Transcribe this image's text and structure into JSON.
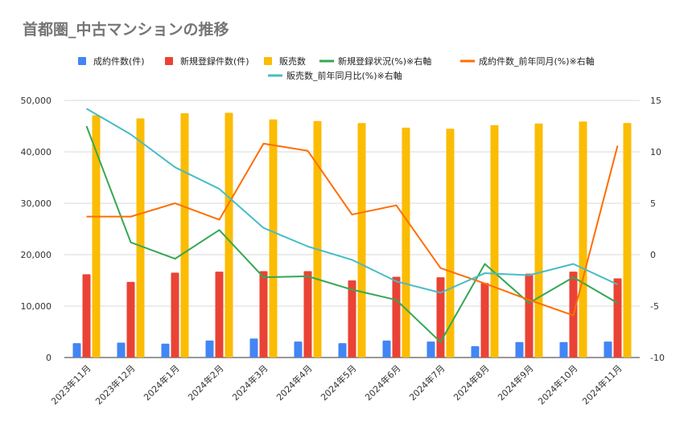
{
  "chart_data": {
    "type": "bar",
    "title": "首都圏_中古マンションの推移",
    "categories": [
      "2023年11月",
      "2023年12月",
      "2024年1月",
      "2024年2月",
      "2024年3月",
      "2024年4月",
      "2024年5月",
      "2024年6月",
      "2024年7月",
      "2024年8月",
      "2024年9月",
      "2024年10月",
      "2024年11月"
    ],
    "ylim": [
      0,
      50000
    ],
    "y_ticks": [
      "0",
      "10,000",
      "20,000",
      "30,000",
      "40,000",
      "50,000"
    ],
    "y2lim": [
      -10,
      15
    ],
    "y2_ticks": [
      "-10",
      "-5",
      "0",
      "5",
      "10",
      "15"
    ],
    "grid": true,
    "legend_position": "top",
    "bar_series": [
      {
        "name": "成約件数(件)",
        "color": "#4285f4",
        "values": [
          2800,
          2900,
          2700,
          3300,
          3700,
          3100,
          2800,
          3300,
          3100,
          2200,
          3000,
          3000,
          3100
        ]
      },
      {
        "name": "新規登録件数(件)",
        "color": "#ea4335",
        "values": [
          16200,
          14700,
          16500,
          16700,
          16800,
          16800,
          15000,
          15700,
          15600,
          14500,
          16300,
          16700,
          15400
        ]
      },
      {
        "name": "販売数",
        "color": "#fbbc04",
        "values": [
          47100,
          46500,
          47500,
          47600,
          46300,
          46000,
          45600,
          44700,
          44500,
          45200,
          45500,
          45900,
          45600
        ]
      }
    ],
    "line_series": [
      {
        "name": "新規登録状況(%)※右軸",
        "color": "#34a853",
        "values": [
          12.5,
          1.2,
          -0.4,
          2.4,
          -2.2,
          -2.1,
          -3.4,
          -4.4,
          -8.5,
          -0.9,
          -4.7,
          -2.2,
          -4.7
        ]
      },
      {
        "name": "成約件数_前年同月(%)※右軸",
        "color": "#ff6d01",
        "values": [
          3.7,
          3.7,
          5.0,
          3.4,
          10.8,
          10.1,
          3.9,
          4.8,
          -1.3,
          -2.8,
          -4.4,
          -5.9,
          10.6
        ]
      },
      {
        "name": "販売数_前年同月比(%)※右軸",
        "color": "#46bdc6",
        "values": [
          14.2,
          11.7,
          8.5,
          6.4,
          2.6,
          0.8,
          -0.5,
          -2.6,
          -3.7,
          -1.8,
          -2.0,
          -0.9,
          -2.9
        ]
      }
    ]
  }
}
